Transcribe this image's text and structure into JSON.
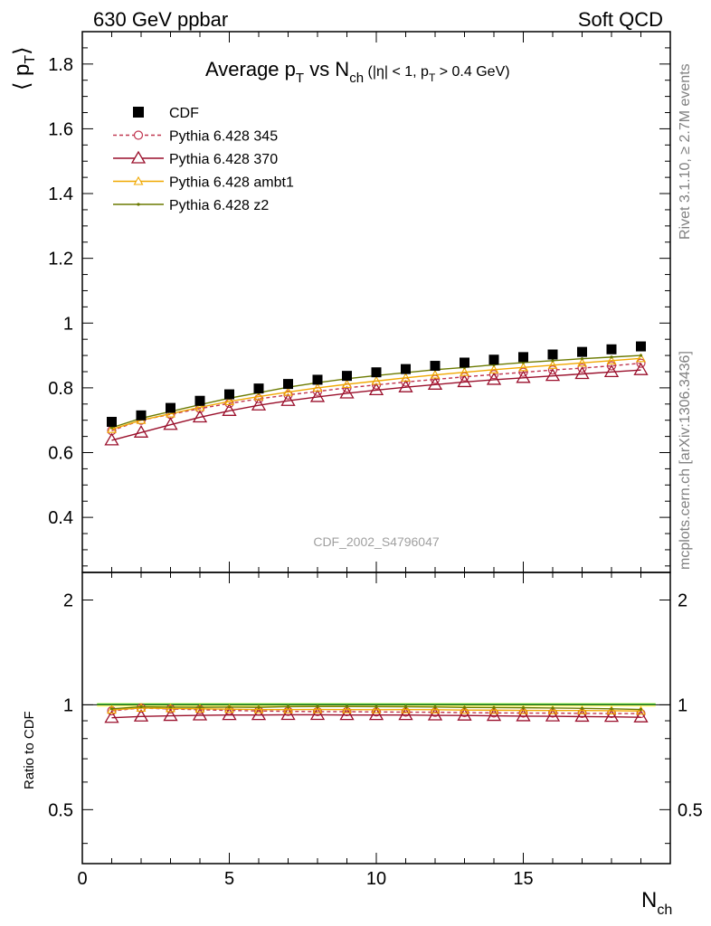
{
  "header": {
    "left": "630 GeV ppbar",
    "right": "Soft QCD"
  },
  "side_text": {
    "rivet": "Rivet 3.1.10, ≥ 2.7M events",
    "mcplots": "mcplots.cern.ch [arXiv:1306.3436]"
  },
  "watermark": "CDF_2002_S4796047",
  "title": {
    "main": "Average p",
    "main_sub": "T",
    "vs": " vs N",
    "vs_sub": "ch",
    "cut_open": " (|η| < 1, p",
    "cut_sub": "T",
    "cut_close": " > 0.4 GeV)"
  },
  "axes": {
    "ylabel_main": "⟨ p",
    "ylabel_sub": "T",
    "ylabel_close": "⟩",
    "ylabel_ratio": "Ratio to CDF",
    "xlabel": "N",
    "xlabel_sub": "ch"
  },
  "colors": {
    "cdf": "#000000",
    "p345": "#c0354f",
    "p370": "#9a0f2b",
    "ambt1": "#f0a800",
    "z2": "#6b7a00",
    "band": "#ffff7a",
    "band_line": "#33b833"
  },
  "chart_data": {
    "type": "line",
    "x": [
      1,
      2,
      3,
      4,
      5,
      6,
      7,
      8,
      9,
      10,
      11,
      12,
      13,
      14,
      15,
      16,
      17,
      18,
      19
    ],
    "xlim": [
      0,
      20
    ],
    "ylim": [
      0.23,
      1.9
    ],
    "ratio_ylim": [
      0.35,
      2.4
    ],
    "xticks": [
      0,
      5,
      10,
      15
    ],
    "yticks": [
      0.4,
      0.6,
      0.8,
      1,
      1.2,
      1.4,
      1.6,
      1.8
    ],
    "ratio_yticks": [
      0.5,
      1,
      2
    ],
    "series": [
      {
        "name": "CDF",
        "key": "cdf",
        "style": "square",
        "values": [
          0.695,
          0.715,
          0.738,
          0.76,
          0.78,
          0.798,
          0.812,
          0.825,
          0.837,
          0.848,
          0.858,
          0.868,
          0.878,
          0.887,
          0.895,
          0.903,
          0.911,
          0.919,
          0.928
        ]
      },
      {
        "name": "Pythia 6.428 345",
        "key": "p345",
        "style": "circle-dashed",
        "values": [
          0.668,
          0.7,
          0.718,
          0.736,
          0.752,
          0.766,
          0.778,
          0.789,
          0.8,
          0.809,
          0.818,
          0.826,
          0.834,
          0.841,
          0.848,
          0.855,
          0.861,
          0.868,
          0.876
        ]
      },
      {
        "name": "Pythia 6.428 370",
        "key": "p370",
        "style": "triangle-open",
        "values": [
          0.638,
          0.662,
          0.686,
          0.709,
          0.729,
          0.746,
          0.76,
          0.772,
          0.783,
          0.793,
          0.802,
          0.81,
          0.818,
          0.825,
          0.831,
          0.837,
          0.843,
          0.849,
          0.855
        ]
      },
      {
        "name": "Pythia 6.428 ambt1",
        "key": "ambt1",
        "style": "triangle-small",
        "values": [
          0.672,
          0.7,
          0.72,
          0.74,
          0.758,
          0.773,
          0.787,
          0.8,
          0.811,
          0.821,
          0.831,
          0.84,
          0.848,
          0.856,
          0.863,
          0.87,
          0.877,
          0.884,
          0.891
        ]
      },
      {
        "name": "Pythia 6.428 z2",
        "key": "z2",
        "style": "dot",
        "values": [
          0.677,
          0.706,
          0.727,
          0.748,
          0.768,
          0.785,
          0.802,
          0.816,
          0.828,
          0.838,
          0.847,
          0.856,
          0.863,
          0.871,
          0.878,
          0.884,
          0.89,
          0.895,
          0.9
        ]
      }
    ],
    "ratios": [
      {
        "key": "p345",
        "values": [
          0.961,
          0.979,
          0.973,
          0.968,
          0.964,
          0.96,
          0.958,
          0.956,
          0.956,
          0.954,
          0.953,
          0.952,
          0.95,
          0.948,
          0.947,
          0.947,
          0.945,
          0.944,
          0.944
        ]
      },
      {
        "key": "p370",
        "values": [
          0.918,
          0.926,
          0.93,
          0.933,
          0.935,
          0.935,
          0.936,
          0.936,
          0.935,
          0.935,
          0.935,
          0.933,
          0.932,
          0.93,
          0.928,
          0.927,
          0.925,
          0.924,
          0.921
        ]
      },
      {
        "key": "ambt1",
        "values": [
          0.967,
          0.979,
          0.976,
          0.974,
          0.972,
          0.969,
          0.969,
          0.97,
          0.969,
          0.968,
          0.969,
          0.968,
          0.966,
          0.965,
          0.964,
          0.963,
          0.963,
          0.962,
          0.96
        ]
      },
      {
        "key": "z2",
        "values": [
          0.974,
          0.987,
          0.985,
          0.984,
          0.985,
          0.984,
          0.988,
          0.989,
          0.989,
          0.988,
          0.987,
          0.986,
          0.983,
          0.982,
          0.981,
          0.979,
          0.977,
          0.974,
          0.97
        ]
      }
    ]
  }
}
